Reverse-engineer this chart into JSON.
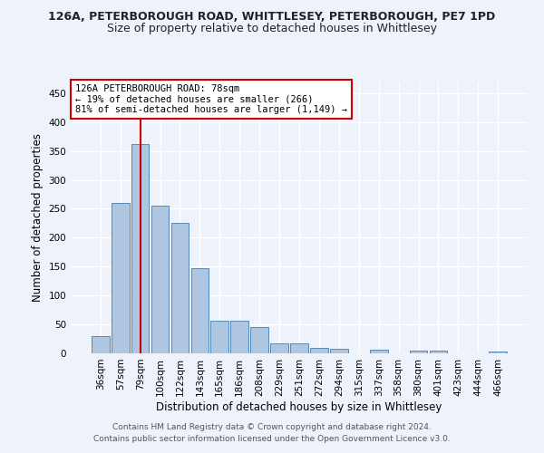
{
  "title1": "126A, PETERBOROUGH ROAD, WHITTLESEY, PETERBOROUGH, PE7 1PD",
  "title2": "Size of property relative to detached houses in Whittlesey",
  "xlabel": "Distribution of detached houses by size in Whittlesey",
  "ylabel": "Number of detached properties",
  "footnote1": "Contains HM Land Registry data © Crown copyright and database right 2024.",
  "footnote2": "Contains public sector information licensed under the Open Government Licence v3.0.",
  "categories": [
    "36sqm",
    "57sqm",
    "79sqm",
    "100sqm",
    "122sqm",
    "143sqm",
    "165sqm",
    "186sqm",
    "208sqm",
    "229sqm",
    "251sqm",
    "272sqm",
    "294sqm",
    "315sqm",
    "337sqm",
    "358sqm",
    "380sqm",
    "401sqm",
    "423sqm",
    "444sqm",
    "466sqm"
  ],
  "values": [
    30,
    260,
    362,
    255,
    225,
    148,
    57,
    57,
    45,
    18,
    18,
    10,
    8,
    0,
    6,
    0,
    4,
    4,
    0,
    0,
    3
  ],
  "bar_color": "#aec6e0",
  "bar_edgecolor": "#5588bb",
  "highlight_index": 2,
  "highlight_line_color": "#cc0000",
  "annotation_text": "126A PETERBOROUGH ROAD: 78sqm\n← 19% of detached houses are smaller (266)\n81% of semi-detached houses are larger (1,149) →",
  "annotation_box_edgecolor": "#cc0000",
  "annotation_box_facecolor": "#ffffff",
  "ylim": [
    0,
    470
  ],
  "yticks": [
    0,
    50,
    100,
    150,
    200,
    250,
    300,
    350,
    400,
    450
  ],
  "background_color": "#eef2fb",
  "grid_color": "#ffffff",
  "title1_fontsize": 9,
  "title2_fontsize": 9,
  "xlabel_fontsize": 8.5,
  "ylabel_fontsize": 8.5,
  "tick_fontsize": 7.5,
  "annotation_fontsize": 7.5,
  "footnote_fontsize": 6.5
}
